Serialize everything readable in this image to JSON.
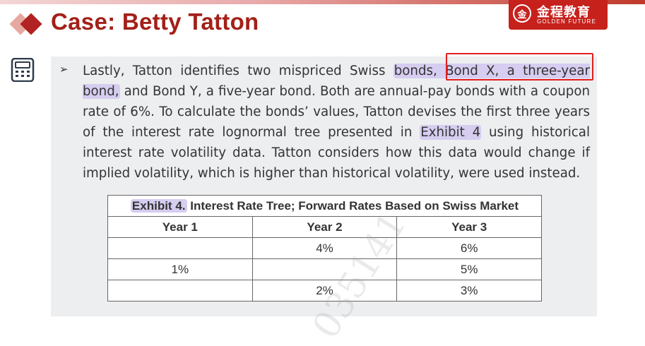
{
  "header": {
    "title": "Case: Betty Tatton",
    "logo_cn": "金程教育",
    "logo_en": "GOLDEN FUTURE",
    "logo_seal": "金"
  },
  "icons": {
    "calculator": "calculator-icon",
    "bullet": "arrow-bullet-icon"
  },
  "paragraph": {
    "bullet": "➢",
    "t1": "Lastly, Tatton identifies two mispriced Swiss ",
    "hl1": "bonds, Bond X, a three-year bond,",
    "t2": " and Bond Y, a five-year bond. Both are annual-pay bonds with a coupon rate of 6%. To calculate the bonds’ values, Tatton devises the first three years of the interest rate lognormal tree presented in ",
    "hl2": "Exhibit 4",
    "t3": " using historical interest rate volatility data. Tatton considers how this data would change if implied volatility, which is higher than historical volatility, were used instead."
  },
  "exhibit": {
    "label": "Exhibit 4.",
    "title": " Interest Rate Tree; Forward Rates Based on Swiss Market",
    "headers": [
      "Year 1",
      "Year 2",
      "Year 3"
    ],
    "rows": [
      [
        "",
        "4%",
        "6%"
      ],
      [
        "1%",
        "",
        "5%"
      ],
      [
        "",
        "2%",
        "3%"
      ]
    ]
  },
  "watermark": "035141",
  "colors": {
    "title": "#a32018",
    "highlight": "#d6cdf0",
    "annotation_box": "#e01e1e",
    "logo_bg": "#c7211c"
  }
}
